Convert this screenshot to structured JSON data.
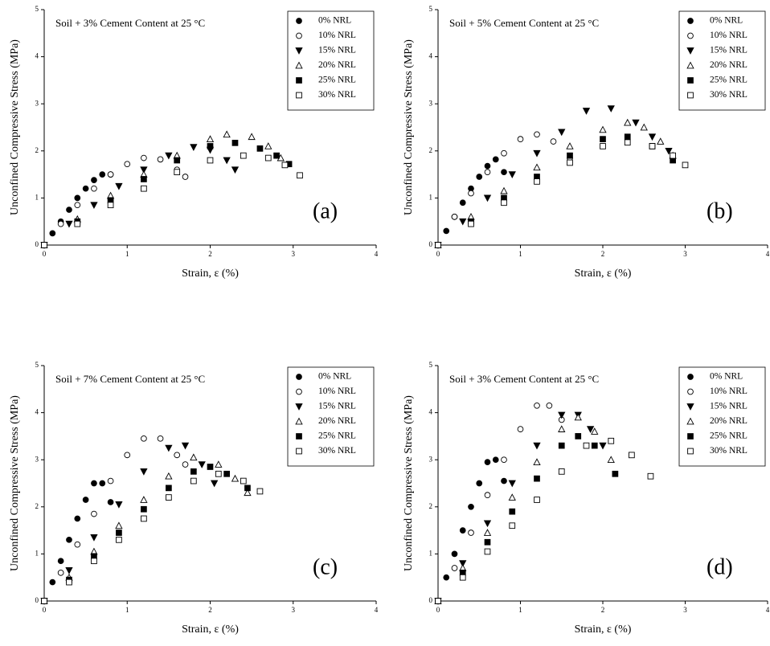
{
  "chart_data": [
    {
      "type": "scatter",
      "title": "Soil  + 3% Cement Content at 25 °C",
      "panel_label": "(a)",
      "xlabel": "Strain, ε (%)",
      "ylabel": "Unconfined Compressive Stress (MPa)",
      "xlim": [
        0,
        4
      ],
      "ylim": [
        0,
        5
      ],
      "xticks": [
        0,
        1,
        2,
        3,
        4
      ],
      "yticks": [
        0,
        1,
        2,
        3,
        4,
        5
      ],
      "legend": "upper right",
      "series": [
        {
          "name": "0% NRL",
          "marker": "circle",
          "filled": true,
          "x": [
            0,
            0.1,
            0.2,
            0.3,
            0.4,
            0.5,
            0.6,
            0.7,
            0.8
          ],
          "values": [
            0,
            0.25,
            0.5,
            0.75,
            1.0,
            1.2,
            1.38,
            1.5,
            1.5
          ]
        },
        {
          "name": "10% NRL",
          "marker": "circle",
          "filled": false,
          "x": [
            0,
            0.2,
            0.4,
            0.6,
            0.8,
            1.0,
            1.2,
            1.4,
            1.6,
            1.7
          ],
          "values": [
            0,
            0.45,
            0.85,
            1.2,
            1.5,
            1.72,
            1.85,
            1.82,
            1.6,
            1.45
          ]
        },
        {
          "name": "15% NRL",
          "marker": "triangle-down",
          "filled": true,
          "x": [
            0,
            0.3,
            0.6,
            0.9,
            1.2,
            1.5,
            1.8,
            2.0,
            2.2,
            2.3
          ],
          "values": [
            0,
            0.45,
            0.85,
            1.25,
            1.6,
            1.9,
            2.08,
            2.02,
            1.8,
            1.6
          ]
        },
        {
          "name": "20% NRL",
          "marker": "triangle-up",
          "filled": false,
          "x": [
            0,
            0.4,
            0.8,
            1.2,
            1.6,
            2.0,
            2.2,
            2.5,
            2.7,
            2.85
          ],
          "values": [
            0,
            0.55,
            1.05,
            1.5,
            1.9,
            2.25,
            2.35,
            2.3,
            2.1,
            1.85
          ]
        },
        {
          "name": "25% NRL",
          "marker": "square",
          "filled": true,
          "x": [
            0,
            0.4,
            0.8,
            1.2,
            1.6,
            2.0,
            2.3,
            2.6,
            2.8,
            2.95
          ],
          "values": [
            0,
            0.5,
            0.95,
            1.4,
            1.8,
            2.1,
            2.17,
            2.05,
            1.9,
            1.72
          ]
        },
        {
          "name": "30% NRL",
          "marker": "square",
          "filled": false,
          "x": [
            0,
            0.4,
            0.8,
            1.2,
            1.6,
            2.0,
            2.4,
            2.7,
            2.9,
            3.08
          ],
          "values": [
            0,
            0.45,
            0.85,
            1.2,
            1.55,
            1.8,
            1.9,
            1.85,
            1.7,
            1.48
          ]
        }
      ]
    },
    {
      "type": "scatter",
      "title": "Soil  + 5% Cement Content at 25 °C",
      "panel_label": "(b)",
      "xlabel": "Strain, ε (%)",
      "ylabel": "Unconfined Compressive Stress (MPa)",
      "xlim": [
        0,
        4
      ],
      "ylim": [
        0,
        5
      ],
      "xticks": [
        0,
        1,
        2,
        3,
        4
      ],
      "yticks": [
        0,
        1,
        2,
        3,
        4,
        5
      ],
      "legend": "upper right",
      "series": [
        {
          "name": "0% NRL",
          "marker": "circle",
          "filled": true,
          "x": [
            0,
            0.1,
            0.2,
            0.3,
            0.4,
            0.5,
            0.6,
            0.7,
            0.8
          ],
          "values": [
            0,
            0.3,
            0.6,
            0.9,
            1.2,
            1.45,
            1.68,
            1.82,
            1.55
          ]
        },
        {
          "name": "10% NRL",
          "marker": "circle",
          "filled": false,
          "x": [
            0,
            0.2,
            0.4,
            0.6,
            0.8,
            1.0,
            1.2,
            1.4,
            1.6
          ],
          "values": [
            0,
            0.6,
            1.1,
            1.55,
            1.95,
            2.25,
            2.35,
            2.2,
            1.85
          ]
        },
        {
          "name": "15% NRL",
          "marker": "triangle-down",
          "filled": true,
          "x": [
            0,
            0.3,
            0.6,
            0.9,
            1.2,
            1.5,
            1.8,
            2.1,
            2.4,
            2.6,
            2.8
          ],
          "values": [
            0,
            0.5,
            1.0,
            1.5,
            1.95,
            2.4,
            2.85,
            2.9,
            2.6,
            2.3,
            2.0
          ]
        },
        {
          "name": "20% NRL",
          "marker": "triangle-up",
          "filled": false,
          "x": [
            0,
            0.4,
            0.8,
            1.2,
            1.6,
            2.0,
            2.3,
            2.5,
            2.7,
            2.85
          ],
          "values": [
            0,
            0.6,
            1.15,
            1.65,
            2.1,
            2.45,
            2.6,
            2.5,
            2.2,
            1.9
          ]
        },
        {
          "name": "25% NRL",
          "marker": "square",
          "filled": true,
          "x": [
            0,
            0.4,
            0.8,
            1.2,
            1.6,
            2.0,
            2.3,
            2.6,
            2.85
          ],
          "values": [
            0,
            0.5,
            1.0,
            1.45,
            1.9,
            2.25,
            2.3,
            2.1,
            1.8
          ]
        },
        {
          "name": "30% NRL",
          "marker": "square",
          "filled": false,
          "x": [
            0,
            0.4,
            0.8,
            1.2,
            1.6,
            2.0,
            2.3,
            2.6,
            2.85,
            3.0
          ],
          "values": [
            0,
            0.45,
            0.9,
            1.35,
            1.75,
            2.1,
            2.18,
            2.1,
            1.9,
            1.7
          ]
        }
      ]
    },
    {
      "type": "scatter",
      "title": "Soil  + 7% Cement Content at 25 °C",
      "panel_label": "(c)",
      "xlabel": "Strain, ε (%)",
      "ylabel": "Unconfined Compressive Stress (MPa)",
      "xlim": [
        0,
        4
      ],
      "ylim": [
        0,
        5
      ],
      "xticks": [
        0,
        1,
        2,
        3,
        4
      ],
      "yticks": [
        0,
        1,
        2,
        3,
        4,
        5
      ],
      "legend": "upper right",
      "series": [
        {
          "name": "0% NRL",
          "marker": "circle",
          "filled": true,
          "x": [
            0,
            0.1,
            0.2,
            0.3,
            0.4,
            0.5,
            0.6,
            0.7,
            0.8
          ],
          "values": [
            0,
            0.4,
            0.85,
            1.3,
            1.75,
            2.15,
            2.5,
            2.5,
            2.1
          ]
        },
        {
          "name": "10% NRL",
          "marker": "circle",
          "filled": false,
          "x": [
            0,
            0.2,
            0.4,
            0.6,
            0.8,
            1.0,
            1.2,
            1.4,
            1.6,
            1.7
          ],
          "values": [
            0,
            0.6,
            1.2,
            1.85,
            2.55,
            3.1,
            3.45,
            3.45,
            3.1,
            2.9
          ]
        },
        {
          "name": "15% NRL",
          "marker": "triangle-down",
          "filled": true,
          "x": [
            0,
            0.3,
            0.6,
            0.9,
            1.2,
            1.5,
            1.7,
            1.9,
            2.05
          ],
          "values": [
            0,
            0.65,
            1.35,
            2.05,
            2.75,
            3.25,
            3.3,
            2.9,
            2.5
          ]
        },
        {
          "name": "20% NRL",
          "marker": "triangle-up",
          "filled": false,
          "x": [
            0,
            0.3,
            0.6,
            0.9,
            1.2,
            1.5,
            1.8,
            2.1,
            2.3,
            2.45
          ],
          "values": [
            0,
            0.5,
            1.05,
            1.6,
            2.15,
            2.65,
            3.05,
            2.9,
            2.6,
            2.3
          ]
        },
        {
          "name": "25% NRL",
          "marker": "square",
          "filled": true,
          "x": [
            0,
            0.3,
            0.6,
            0.9,
            1.2,
            1.5,
            1.8,
            2.0,
            2.2,
            2.45
          ],
          "values": [
            0,
            0.45,
            0.95,
            1.45,
            1.95,
            2.4,
            2.75,
            2.85,
            2.7,
            2.4
          ]
        },
        {
          "name": "30% NRL",
          "marker": "square",
          "filled": false,
          "x": [
            0,
            0.3,
            0.6,
            0.9,
            1.2,
            1.5,
            1.8,
            2.1,
            2.4,
            2.6
          ],
          "values": [
            0,
            0.4,
            0.85,
            1.3,
            1.75,
            2.2,
            2.55,
            2.7,
            2.55,
            2.33
          ]
        }
      ]
    },
    {
      "type": "scatter",
      "title": "Soil  + 3% Cement Content at 25 °C",
      "panel_label": "(d)",
      "xlabel": "Strain, ε (%)",
      "ylabel": "Unconfined Compressive Stress (MPa)",
      "xlim": [
        0,
        4
      ],
      "ylim": [
        0,
        5
      ],
      "xticks": [
        0,
        1,
        2,
        3,
        4
      ],
      "yticks": [
        0,
        1,
        2,
        3,
        4,
        5
      ],
      "legend": "upper right",
      "series": [
        {
          "name": "0% NRL",
          "marker": "circle",
          "filled": true,
          "x": [
            0,
            0.1,
            0.2,
            0.3,
            0.4,
            0.5,
            0.6,
            0.7,
            0.8
          ],
          "values": [
            0,
            0.5,
            1.0,
            1.5,
            2.0,
            2.5,
            2.95,
            3.0,
            2.55
          ]
        },
        {
          "name": "10% NRL",
          "marker": "circle",
          "filled": false,
          "x": [
            0,
            0.2,
            0.4,
            0.6,
            0.8,
            1.0,
            1.2,
            1.35,
            1.5
          ],
          "values": [
            0,
            0.7,
            1.45,
            2.25,
            3.0,
            3.65,
            4.15,
            4.15,
            3.85
          ]
        },
        {
          "name": "15% NRL",
          "marker": "triangle-down",
          "filled": true,
          "x": [
            0,
            0.3,
            0.6,
            0.9,
            1.2,
            1.5,
            1.7,
            1.85,
            2.0
          ],
          "values": [
            0,
            0.8,
            1.65,
            2.5,
            3.3,
            3.95,
            3.95,
            3.65,
            3.3
          ]
        },
        {
          "name": "20% NRL",
          "marker": "triangle-up",
          "filled": false,
          "x": [
            0,
            0.3,
            0.6,
            0.9,
            1.2,
            1.5,
            1.7,
            1.9,
            2.1
          ],
          "values": [
            0,
            0.7,
            1.45,
            2.2,
            2.95,
            3.65,
            3.9,
            3.6,
            3.0
          ]
        },
        {
          "name": "25% NRL",
          "marker": "square",
          "filled": true,
          "x": [
            0,
            0.3,
            0.6,
            0.9,
            1.2,
            1.5,
            1.7,
            1.9,
            2.15
          ],
          "values": [
            0,
            0.6,
            1.25,
            1.9,
            2.6,
            3.3,
            3.5,
            3.3,
            2.7
          ]
        },
        {
          "name": "30% NRL",
          "marker": "square",
          "filled": false,
          "x": [
            0,
            0.3,
            0.6,
            0.9,
            1.2,
            1.5,
            1.8,
            2.1,
            2.35,
            2.58
          ],
          "values": [
            0,
            0.5,
            1.05,
            1.6,
            2.15,
            2.75,
            3.3,
            3.4,
            3.1,
            2.65
          ]
        }
      ]
    }
  ]
}
